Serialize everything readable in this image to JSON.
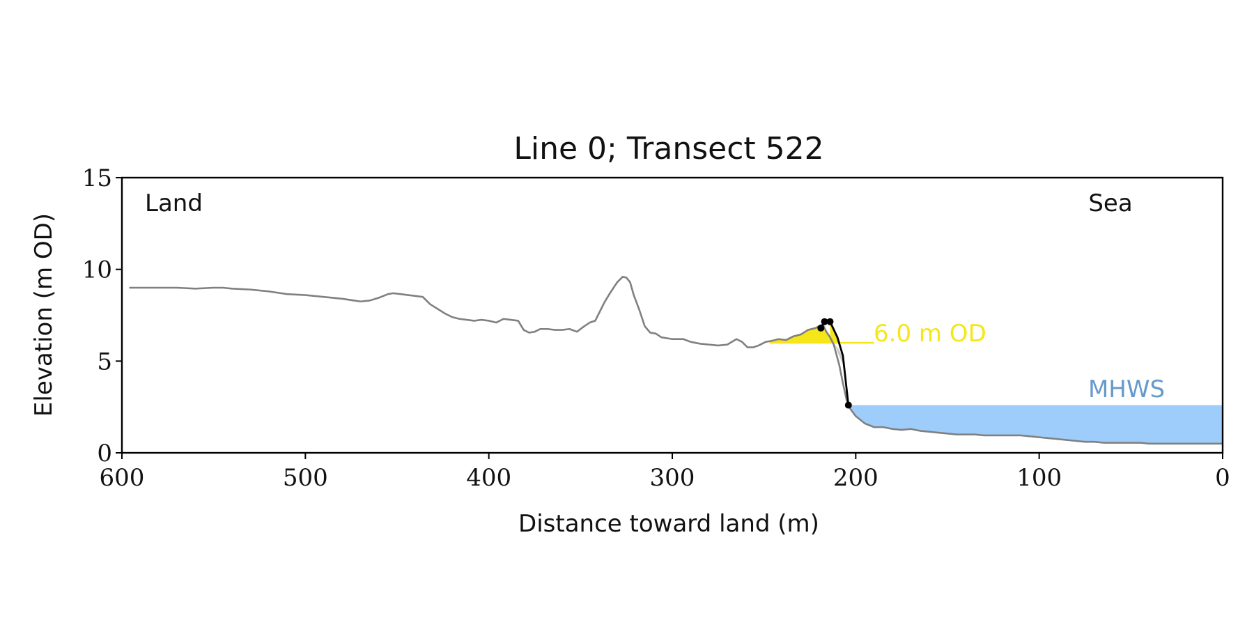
{
  "chart_data": {
    "type": "line",
    "title": "Line 0; Transect 522",
    "xlabel": "Distance toward land (m)",
    "ylabel": "Elevation (m OD)",
    "xlim": [
      600,
      0
    ],
    "ylim": [
      0,
      15
    ],
    "x_ticks": [
      600,
      500,
      400,
      300,
      200,
      100,
      0
    ],
    "y_ticks": [
      0,
      5,
      10,
      15
    ],
    "grid": false,
    "annotations": {
      "land": "Land",
      "sea": "Sea",
      "level_label": "6.0 m OD",
      "mhws_label": "MHWS"
    },
    "colors": {
      "profile": "#808080",
      "cliff": "#000000",
      "level": "#f5e61a",
      "level_text": "#f5e61a",
      "mhws_fill": "#9fcdfb",
      "mhws_text": "#6699cc",
      "toe_wedge": "#cccccc"
    },
    "mhws_level": 2.6,
    "threshold_level": 6.0,
    "threshold_line_x": [
      247,
      190
    ],
    "series": [
      {
        "x": [
          596,
          590,
          580,
          570,
          560,
          550,
          545,
          540,
          530,
          520,
          510,
          500,
          490,
          480,
          470,
          465,
          460,
          455,
          452,
          448,
          444,
          440,
          436,
          432,
          428,
          424,
          420,
          416,
          412,
          408,
          404,
          400,
          396,
          392,
          388,
          384,
          381,
          378,
          375,
          372,
          368,
          364,
          360,
          356,
          352,
          348,
          345,
          342,
          340,
          337,
          334,
          330,
          327,
          325,
          323,
          321,
          318,
          315,
          312,
          309,
          306,
          300,
          294,
          290,
          285,
          280,
          275,
          270,
          265,
          262,
          259,
          256,
          253,
          249,
          246,
          242,
          238,
          234,
          230,
          226,
          222,
          220,
          218,
          216,
          214,
          212,
          209,
          207,
          205,
          203,
          200,
          195,
          190,
          185,
          180,
          175,
          170,
          165,
          160,
          155,
          150,
          145,
          140,
          135,
          130,
          125,
          120,
          115,
          110,
          105,
          100,
          95,
          90,
          85,
          80,
          75,
          70,
          65,
          60,
          55,
          50,
          45,
          40,
          35,
          30,
          25,
          20,
          15,
          10,
          5,
          0
        ],
        "y": [
          9.0,
          9.0,
          9.0,
          9.0,
          8.95,
          9.0,
          9.0,
          8.95,
          8.9,
          8.8,
          8.65,
          8.6,
          8.5,
          8.4,
          8.25,
          8.3,
          8.45,
          8.65,
          8.7,
          8.65,
          8.6,
          8.55,
          8.5,
          8.1,
          7.85,
          7.6,
          7.4,
          7.3,
          7.25,
          7.2,
          7.25,
          7.2,
          7.1,
          7.3,
          7.25,
          7.2,
          6.7,
          6.55,
          6.6,
          6.75,
          6.75,
          6.7,
          6.7,
          6.75,
          6.6,
          6.9,
          7.1,
          7.2,
          7.6,
          8.2,
          8.7,
          9.3,
          9.6,
          9.55,
          9.3,
          8.6,
          7.8,
          6.9,
          6.55,
          6.5,
          6.3,
          6.2,
          6.2,
          6.05,
          5.95,
          5.9,
          5.85,
          5.9,
          6.2,
          6.05,
          5.75,
          5.75,
          5.85,
          6.05,
          6.1,
          6.2,
          6.15,
          6.35,
          6.45,
          6.7,
          6.8,
          6.9,
          7.0,
          6.6,
          6.3,
          5.9,
          4.8,
          3.8,
          2.9,
          2.4,
          2.0,
          1.6,
          1.4,
          1.4,
          1.3,
          1.25,
          1.3,
          1.2,
          1.15,
          1.1,
          1.05,
          1.0,
          1.0,
          1.0,
          0.95,
          0.95,
          0.95,
          0.95,
          0.95,
          0.9,
          0.85,
          0.8,
          0.75,
          0.7,
          0.65,
          0.6,
          0.6,
          0.55,
          0.55,
          0.55,
          0.55,
          0.55,
          0.5,
          0.5,
          0.5,
          0.5,
          0.5,
          0.5,
          0.5,
          0.5,
          0.5
        ]
      }
    ],
    "cliff_line": {
      "x": [
        219,
        217,
        214,
        210,
        207,
        204
      ],
      "y": [
        6.8,
        7.15,
        7.15,
        6.3,
        5.3,
        2.6
      ]
    },
    "cliff_points": {
      "x": [
        219,
        217,
        214,
        204
      ],
      "y": [
        6.8,
        7.15,
        7.15,
        2.6
      ]
    },
    "toe_wedge": {
      "x": [
        212,
        207,
        204,
        207
      ],
      "y": [
        6.0,
        4.8,
        2.6,
        5.3
      ]
    }
  }
}
